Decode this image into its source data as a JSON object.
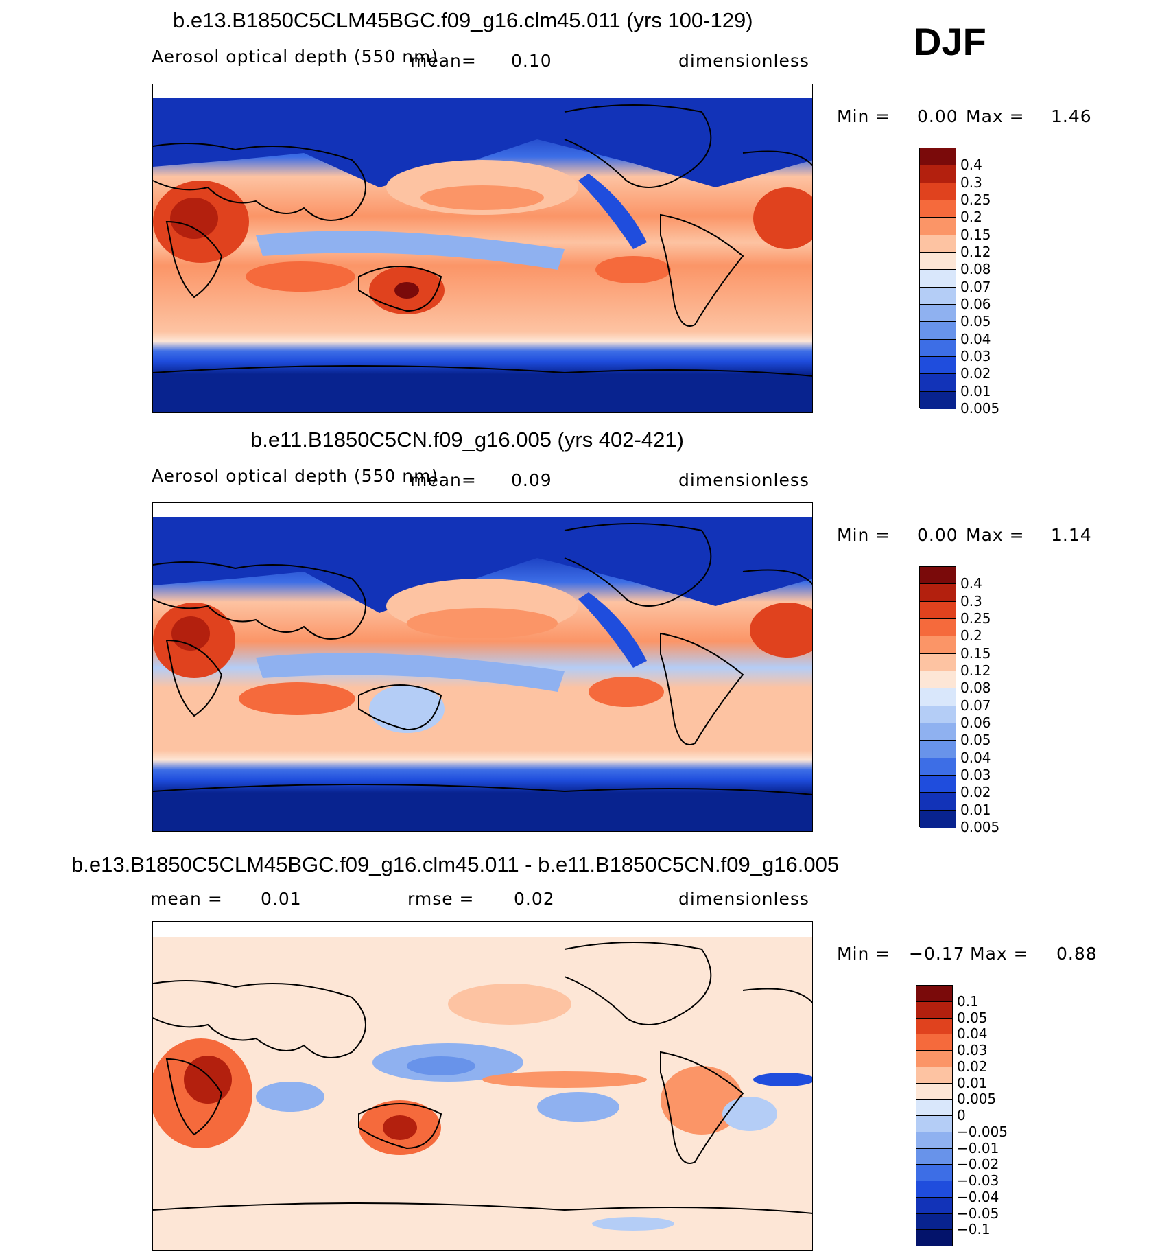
{
  "season": "DJF",
  "panels": [
    {
      "title": "b.e13.B1850C5CLM45BGC.f09_g16.clm45.011 (yrs 100-129)",
      "variable": "Aerosol optical depth (550 nm)",
      "mean_label": "mean=",
      "mean_value": "0.10",
      "units": "dimensionless",
      "min_label": "Min =",
      "min_value": "0.00",
      "max_label": "Max =",
      "max_value": "1.46",
      "colorbar": {
        "colors": [
          "#7a0a0a",
          "#b3200e",
          "#e0421e",
          "#f56a3c",
          "#fb9567",
          "#fdc3a2",
          "#fde6d6",
          "#d9e7fb",
          "#b4cdf6",
          "#8fb1f0",
          "#6893ea",
          "#3d6ee6",
          "#1f4ddd",
          "#1233b8",
          "#08238f"
        ],
        "labels": [
          "0.4",
          "0.3",
          "0.25",
          "0.2",
          "0.15",
          "0.12",
          "0.08",
          "0.07",
          "0.06",
          "0.05",
          "0.04",
          "0.03",
          "0.02",
          "0.01",
          "0.005"
        ]
      }
    },
    {
      "title": "b.e11.B1850C5CN.f09_g16.005 (yrs 402-421)",
      "variable": "Aerosol optical depth (550 nm)",
      "mean_label": "mean=",
      "mean_value": "0.09",
      "units": "dimensionless",
      "min_label": "Min =",
      "min_value": "0.00",
      "max_label": "Max =",
      "max_value": "1.14",
      "colorbar": {
        "colors": [
          "#7a0a0a",
          "#b3200e",
          "#e0421e",
          "#f56a3c",
          "#fb9567",
          "#fdc3a2",
          "#fde6d6",
          "#d9e7fb",
          "#b4cdf6",
          "#8fb1f0",
          "#6893ea",
          "#3d6ee6",
          "#1f4ddd",
          "#1233b8",
          "#08238f"
        ],
        "labels": [
          "0.4",
          "0.3",
          "0.25",
          "0.2",
          "0.15",
          "0.12",
          "0.08",
          "0.07",
          "0.06",
          "0.05",
          "0.04",
          "0.03",
          "0.02",
          "0.01",
          "0.005"
        ]
      }
    },
    {
      "title": "b.e13.B1850C5CLM45BGC.f09_g16.clm45.011 - b.e11.B1850C5CN.f09_g16.005",
      "mean_label": "mean =",
      "mean_value": "0.01",
      "rmse_label": "rmse =",
      "rmse_value": "0.02",
      "units": "dimensionless",
      "min_label": "Min =",
      "min_value": "−0.17",
      "max_label": "Max =",
      "max_value": "0.88",
      "colorbar": {
        "colors": [
          "#7a0a0a",
          "#b3200e",
          "#e0421e",
          "#f56a3c",
          "#fb9567",
          "#fdc3a2",
          "#fde6d6",
          "#d9e7fb",
          "#b4cdf6",
          "#8fb1f0",
          "#6893ea",
          "#3d6ee6",
          "#1f4ddd",
          "#1233b8",
          "#08238f",
          "#03136b"
        ],
        "labels": [
          "0.1",
          "0.05",
          "0.04",
          "0.03",
          "0.02",
          "0.01",
          "0.005",
          "0",
          "−0.005",
          "−0.01",
          "−0.02",
          "−0.03",
          "−0.04",
          "−0.05",
          "−0.1"
        ]
      }
    }
  ],
  "chart_data": [
    {
      "type": "heatmap",
      "title": "b.e13.B1850C5CLM45BGC.f09_g16.clm45.011 (yrs 100-129)",
      "variable": "Aerosol optical depth (550 nm)",
      "season": "DJF",
      "mean": 0.1,
      "min": 0.0,
      "max": 1.46,
      "units": "dimensionless",
      "levels": [
        0.005,
        0.01,
        0.02,
        0.03,
        0.04,
        0.05,
        0.06,
        0.07,
        0.08,
        0.12,
        0.15,
        0.2,
        0.25,
        0.3,
        0.4
      ]
    },
    {
      "type": "heatmap",
      "title": "b.e11.B1850C5CN.f09_g16.005 (yrs 402-421)",
      "variable": "Aerosol optical depth (550 nm)",
      "season": "DJF",
      "mean": 0.09,
      "min": 0.0,
      "max": 1.14,
      "units": "dimensionless",
      "levels": [
        0.005,
        0.01,
        0.02,
        0.03,
        0.04,
        0.05,
        0.06,
        0.07,
        0.08,
        0.12,
        0.15,
        0.2,
        0.25,
        0.3,
        0.4
      ]
    },
    {
      "type": "heatmap",
      "title": "b.e13.B1850C5CLM45BGC.f09_g16.clm45.011 - b.e11.B1850C5CN.f09_g16.005",
      "season": "DJF",
      "mean": 0.01,
      "rmse": 0.02,
      "min": -0.17,
      "max": 0.88,
      "units": "dimensionless",
      "levels": [
        -0.1,
        -0.05,
        -0.04,
        -0.03,
        -0.02,
        -0.01,
        -0.005,
        0,
        0.005,
        0.01,
        0.02,
        0.03,
        0.04,
        0.05,
        0.1
      ]
    }
  ]
}
